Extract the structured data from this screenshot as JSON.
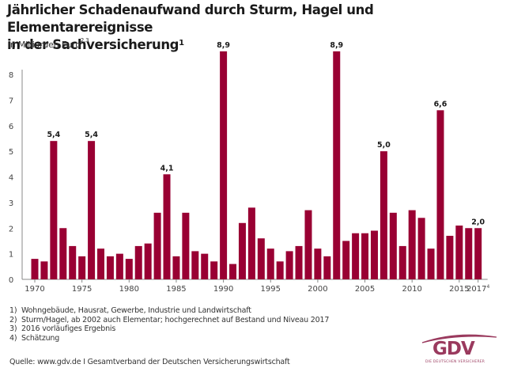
{
  "header": {
    "title_line1": "Jährlicher Schadenaufwand durch Sturm, Hagel und Elementarereignisse",
    "title_line2": "in der Sachversicherung",
    "title_sup": "1",
    "subtitle": "in Milliarden Euro",
    "subtitle_sup": "2,3"
  },
  "chart_data": {
    "type": "bar",
    "title": "Jährlicher Schadenaufwand durch Sturm, Hagel und Elementarereignisse in der Sachversicherung",
    "ylabel": "in Milliarden Euro",
    "xlabel": "",
    "ylim": [
      0,
      8
    ],
    "yticks": [
      0,
      1,
      2,
      3,
      4,
      5,
      6,
      7,
      8
    ],
    "grid": false,
    "bar_color": "#990033",
    "categories": [
      1970,
      1971,
      1972,
      1973,
      1974,
      1975,
      1976,
      1977,
      1978,
      1979,
      1980,
      1981,
      1982,
      1983,
      1984,
      1985,
      1986,
      1987,
      1988,
      1989,
      1990,
      1991,
      1992,
      1993,
      1994,
      1995,
      1996,
      1997,
      1998,
      1999,
      2000,
      2001,
      2002,
      2003,
      2004,
      2005,
      2006,
      2007,
      2008,
      2009,
      2010,
      2011,
      2012,
      2013,
      2014,
      2015,
      2016,
      2017
    ],
    "values": [
      0.8,
      0.7,
      5.4,
      2.0,
      1.3,
      0.9,
      5.4,
      1.2,
      0.9,
      1.0,
      0.8,
      1.3,
      1.4,
      2.6,
      4.1,
      0.9,
      2.6,
      1.1,
      1.0,
      0.7,
      8.9,
      0.6,
      2.2,
      2.8,
      1.6,
      1.2,
      0.7,
      1.1,
      1.3,
      2.7,
      1.2,
      0.9,
      8.9,
      1.5,
      1.8,
      1.8,
      1.9,
      5.0,
      2.6,
      1.3,
      2.7,
      2.4,
      1.2,
      6.6,
      1.7,
      2.1,
      2.0,
      2.0
    ],
    "xtick_labels": [
      {
        "year": 1970,
        "label": "1970",
        "sup": ""
      },
      {
        "year": 1975,
        "label": "1975",
        "sup": ""
      },
      {
        "year": 1980,
        "label": "1980",
        "sup": ""
      },
      {
        "year": 1985,
        "label": "1985",
        "sup": ""
      },
      {
        "year": 1990,
        "label": "1990",
        "sup": ""
      },
      {
        "year": 1995,
        "label": "1995",
        "sup": ""
      },
      {
        "year": 2000,
        "label": "2000",
        "sup": ""
      },
      {
        "year": 2005,
        "label": "2005",
        "sup": ""
      },
      {
        "year": 2010,
        "label": "2010",
        "sup": ""
      },
      {
        "year": 2015,
        "label": "2015",
        "sup": ""
      },
      {
        "year": 2017,
        "label": "2017",
        "sup": "4"
      }
    ],
    "annotations": [
      {
        "year": 1972,
        "label": "5,4"
      },
      {
        "year": 1976,
        "label": "5,4"
      },
      {
        "year": 1984,
        "label": "4,1"
      },
      {
        "year": 1990,
        "label": "8,9"
      },
      {
        "year": 2002,
        "label": "8,9"
      },
      {
        "year": 2007,
        "label": "5,0"
      },
      {
        "year": 2013,
        "label": "6,6"
      },
      {
        "year": 2017,
        "label": "2,0"
      }
    ]
  },
  "footnotes": [
    {
      "num": "1)",
      "text": "Wohngebäude, Hausrat, Gewerbe, Industrie und Landwirtschaft"
    },
    {
      "num": "2)",
      "text": "Sturm/Hagel, ab 2002 auch Elementar; hochgerechnet auf Bestand und Niveau 2017"
    },
    {
      "num": "3)",
      "text": "2016 vorläufiges Ergebnis"
    },
    {
      "num": "4)",
      "text": "Schätzung"
    }
  ],
  "source": "Quelle: www.gdv.de I Gesamtverband der Deutschen Versicherungswirtschaft",
  "logo": {
    "text": "GDV",
    "tagline": "DIE DEUTSCHEN VERSICHERER",
    "color": "#9a3a5e"
  }
}
